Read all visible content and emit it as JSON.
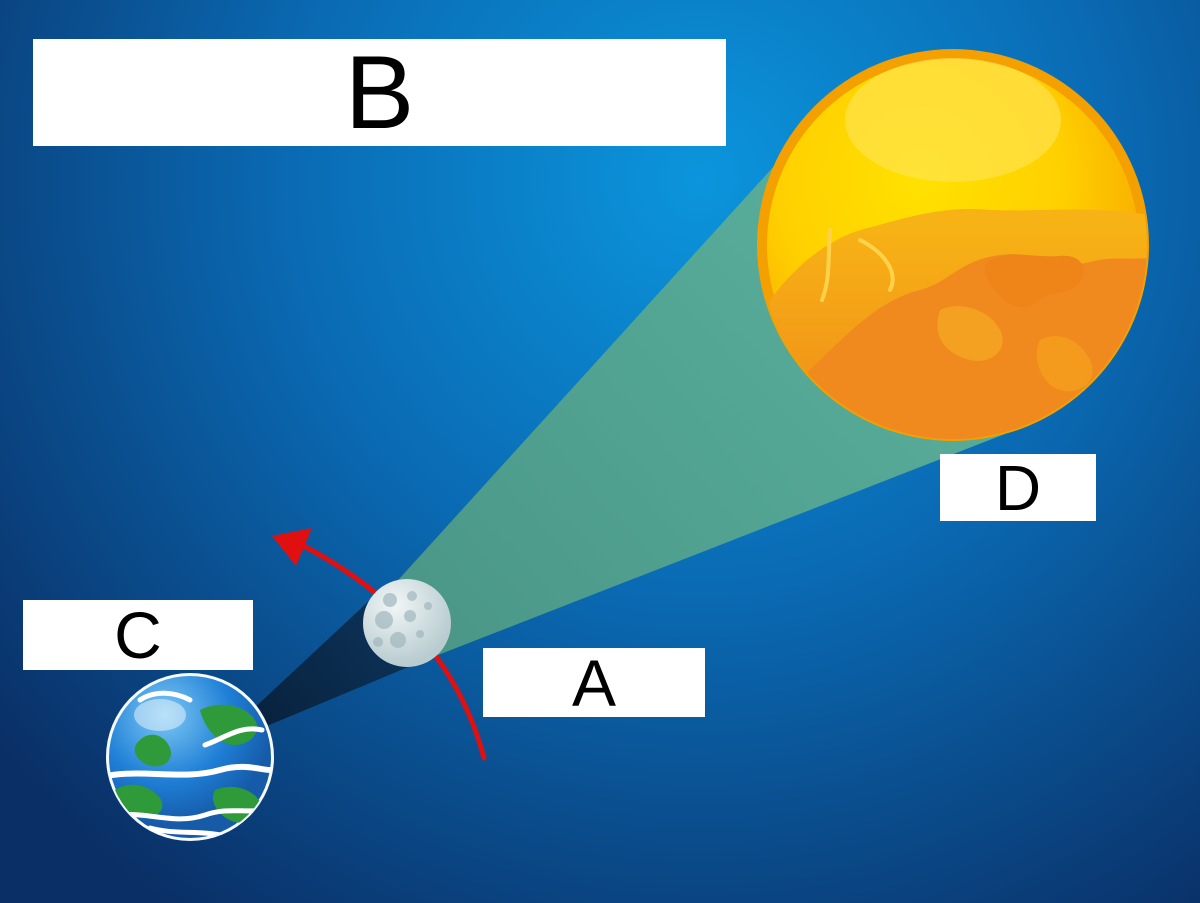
{
  "labels": {
    "a": "A",
    "b": "B",
    "c": "C",
    "d": "D"
  },
  "colors": {
    "background_center": "#0a8fd6",
    "background_edge": "#0a2f66",
    "sunlight_cone": "#5aa890",
    "umbra": "#0b2a4a",
    "orbit_arrow": "#e01010",
    "sun_outer": "#f7a800",
    "sun_inner": "#ffd800",
    "sun_spots": "#f28c1e",
    "moon": "#d8e4e6",
    "earth_ocean": "#1f7fd6",
    "earth_land": "#2e9a3a"
  },
  "icons": {
    "sun": "sun-icon",
    "moon": "moon-icon",
    "earth": "earth-icon",
    "orbit": "orbit-arrow-icon"
  }
}
